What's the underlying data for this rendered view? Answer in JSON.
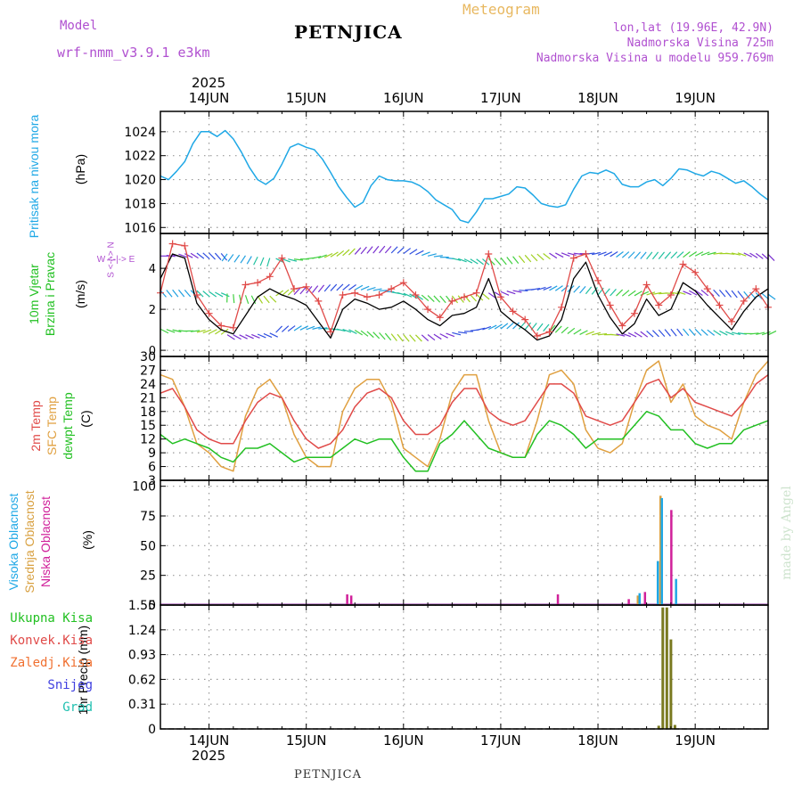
{
  "header": {
    "model_label": "Model",
    "model_name": "wrf-nmm_v3.9.1 e3km",
    "meteogram_label": "Meteogram",
    "station": "PETNJICA",
    "lonlat": "lon,lat (19.96E, 42.9N)",
    "altitude": "Nadmorska Visina 725m",
    "model_altitude": "Nadmorska Visina u modelu 959.769m",
    "year_top": "2025",
    "year_bottom": "2025",
    "footer_station": "PETNJICA",
    "watermark": "made by Angel"
  },
  "colors": {
    "pressure": "#1fa8e6",
    "t2m": "#e04a48",
    "sfc": "#e0a040",
    "dewpt": "#22c022",
    "wind_speed": "#000000",
    "gust": "#e04a48",
    "high_cloud": "#1fa8e6",
    "mid_cloud": "#d8a040",
    "low_cloud": "#d0209a",
    "precip": "#7a7a20"
  },
  "chart_data": {
    "type": "meteogram",
    "x_days": [
      "14JUN",
      "15JUN",
      "16JUN",
      "17JUN",
      "18JUN",
      "19JUN"
    ],
    "x_unit": "hours since 13JUN 12UTC, day ticks at 12,36,60,84,108,132",
    "x_range": [
      0,
      150
    ],
    "panels": [
      {
        "id": "pressure",
        "type": "line",
        "ylabel_side": "Pritisak na nivou mora",
        "unit": "(hPa)",
        "yticks": [
          "1024",
          "1022",
          "1020",
          "1018",
          "1016"
        ],
        "ylim": [
          1015.5,
          1025.7
        ],
        "x": [
          0,
          2,
          4,
          6,
          8,
          10,
          12,
          14,
          16,
          18,
          20,
          22,
          24,
          26,
          28,
          30,
          32,
          34,
          36,
          38,
          40,
          42,
          44,
          46,
          48,
          50,
          52,
          54,
          56,
          58,
          60,
          62,
          64,
          66,
          68,
          70,
          72,
          74,
          76,
          78,
          80,
          82,
          84,
          86,
          88,
          90,
          92,
          94,
          96,
          98,
          100,
          102,
          104,
          106,
          108,
          110,
          112,
          114,
          116,
          118,
          120,
          122,
          124,
          126,
          128,
          130,
          132,
          134,
          136,
          138,
          140,
          142,
          144,
          146,
          148,
          150
        ],
        "values": [
          1020.3,
          1020.0,
          1020.7,
          1021.5,
          1023.0,
          1024.0,
          1024.0,
          1023.6,
          1024.1,
          1023.4,
          1022.3,
          1021.0,
          1020.0,
          1019.6,
          1020.1,
          1021.3,
          1022.7,
          1023.0,
          1022.7,
          1022.5,
          1021.7,
          1020.6,
          1019.4,
          1018.5,
          1017.7,
          1018.1,
          1019.5,
          1020.3,
          1020.0,
          1019.9,
          1019.9,
          1019.8,
          1019.5,
          1019.0,
          1018.3,
          1017.9,
          1017.5,
          1016.6,
          1016.4,
          1017.3,
          1018.4,
          1018.4,
          1018.6,
          1018.8,
          1019.4,
          1019.3,
          1018.7,
          1018.0,
          1017.8,
          1017.7,
          1017.9,
          1019.2,
          1020.3,
          1020.6,
          1020.5,
          1020.8,
          1020.5,
          1019.6,
          1019.4,
          1019.4,
          1019.8,
          1020.0,
          1019.5,
          1020.1,
          1020.9,
          1020.8,
          1020.5,
          1020.3,
          1020.7,
          1020.5,
          1020.1,
          1019.7,
          1019.9,
          1019.4,
          1018.8,
          1018.3
        ]
      },
      {
        "id": "wind",
        "type": "line",
        "ylabel_side": [
          "10m Vjetar",
          "Brzina i Pravac"
        ],
        "unit": "(m/s)",
        "compass": "W <-|-> E",
        "compass_vert": "S <-|-> N",
        "yticks": [
          "4",
          "2",
          "0"
        ],
        "ylim": [
          -0.3,
          5.7
        ],
        "x": [
          0,
          3,
          6,
          9,
          12,
          15,
          18,
          21,
          24,
          27,
          30,
          33,
          36,
          39,
          42,
          45,
          48,
          51,
          54,
          57,
          60,
          63,
          66,
          69,
          72,
          75,
          78,
          81,
          84,
          87,
          90,
          93,
          96,
          99,
          102,
          105,
          108,
          111,
          114,
          117,
          120,
          123,
          126,
          129,
          132,
          135,
          138,
          141,
          144,
          147,
          150
        ],
        "speed": [
          3.5,
          4.7,
          4.5,
          2.3,
          1.5,
          1.0,
          0.8,
          1.7,
          2.6,
          3.0,
          2.7,
          2.5,
          2.2,
          1.4,
          0.6,
          2.0,
          2.5,
          2.3,
          2.0,
          2.1,
          2.4,
          2.0,
          1.5,
          1.2,
          1.7,
          1.8,
          2.1,
          3.5,
          1.9,
          1.4,
          1.0,
          0.5,
          0.7,
          1.5,
          3.5,
          4.3,
          2.7,
          1.6,
          0.8,
          1.3,
          2.5,
          1.7,
          2.0,
          3.3,
          2.9,
          2.2,
          1.6,
          1.0,
          1.9,
          2.6,
          3.0
        ],
        "gust": [
          2.8,
          5.2,
          5.1,
          2.7,
          1.8,
          1.2,
          1.1,
          3.2,
          3.3,
          3.6,
          4.5,
          3.0,
          3.1,
          2.4,
          0.9,
          2.7,
          2.8,
          2.6,
          2.7,
          3.0,
          3.3,
          2.7,
          2.0,
          1.6,
          2.4,
          2.6,
          2.8,
          4.7,
          2.6,
          1.9,
          1.5,
          0.7,
          0.9,
          2.1,
          4.5,
          4.7,
          3.4,
          2.2,
          1.2,
          1.8,
          3.2,
          2.2,
          2.7,
          4.2,
          3.8,
          3.0,
          2.2,
          1.4,
          2.4,
          3.0,
          2.1
        ]
      },
      {
        "id": "temperature",
        "type": "line",
        "ylabel_side": [
          "2m Temp",
          "SFC Temp",
          "dewpt Temp"
        ],
        "unit": "(C)",
        "yticks": [
          "30",
          "27",
          "24",
          "21",
          "18",
          "15",
          "12",
          "9",
          "6",
          "3"
        ],
        "ylim": [
          3,
          30
        ],
        "x": [
          0,
          3,
          6,
          9,
          12,
          15,
          18,
          21,
          24,
          27,
          30,
          33,
          36,
          39,
          42,
          45,
          48,
          51,
          54,
          57,
          60,
          63,
          66,
          69,
          72,
          75,
          78,
          81,
          84,
          87,
          90,
          93,
          96,
          99,
          102,
          105,
          108,
          111,
          114,
          117,
          120,
          123,
          126,
          129,
          132,
          135,
          138,
          141,
          144,
          147,
          150
        ],
        "t2m": [
          22,
          23,
          19,
          14,
          12,
          11,
          11,
          16,
          20,
          22,
          21,
          16,
          12,
          10,
          11,
          14,
          19,
          22,
          23,
          21,
          16,
          13,
          13,
          15,
          20,
          23,
          23,
          18,
          16,
          15,
          16,
          20,
          24,
          24,
          22,
          17,
          16,
          15,
          16,
          20,
          24,
          25,
          21,
          23,
          20,
          19,
          18,
          17,
          20,
          24,
          26
        ],
        "sfc": [
          26,
          25,
          19,
          11,
          9,
          6,
          5,
          17,
          23,
          25,
          21,
          13,
          8,
          6,
          6,
          18,
          23,
          25,
          25,
          20,
          10,
          8,
          6,
          12,
          22,
          26,
          26,
          16,
          9,
          8,
          8,
          16,
          26,
          27,
          24,
          14,
          10,
          9,
          11,
          20,
          27,
          29,
          20,
          24,
          17,
          15,
          14,
          12,
          20,
          26,
          29
        ],
        "dewpt": [
          13,
          11,
          12,
          11,
          10,
          8,
          7,
          10,
          10,
          11,
          9,
          7,
          8,
          8,
          8,
          10,
          12,
          11,
          12,
          12,
          8,
          5,
          5,
          11,
          13,
          16,
          13,
          10,
          9,
          8,
          8,
          13,
          16,
          15,
          13,
          10,
          12,
          12,
          12,
          15,
          18,
          17,
          14,
          14,
          11,
          10,
          11,
          11,
          14,
          15,
          16
        ]
      },
      {
        "id": "cloud",
        "type": "bar",
        "ylabel_side": [
          "Visoka Oblacnost",
          "Srednja Oblacnost",
          "Niska Oblacnost"
        ],
        "unit": "(%)",
        "yticks": [
          "100",
          "75",
          "50",
          "25",
          "0"
        ],
        "ylim": [
          0,
          105
        ],
        "high": [
          {
            "x": 118,
            "v": 10
          },
          {
            "x": 122.5,
            "v": 37
          },
          {
            "x": 123.5,
            "v": 90
          },
          {
            "x": 127,
            "v": 22
          }
        ],
        "mid": [
          {
            "x": 118,
            "v": 8
          },
          {
            "x": 123,
            "v": 37
          },
          {
            "x": 123.6,
            "v": 92
          }
        ],
        "low": [
          {
            "x": 45.5,
            "v": 9
          },
          {
            "x": 46.5,
            "v": 8
          },
          {
            "x": 97.5,
            "v": 9
          },
          {
            "x": 115,
            "v": 5
          },
          {
            "x": 119,
            "v": 11
          },
          {
            "x": 125.5,
            "v": 80
          }
        ]
      },
      {
        "id": "precip",
        "type": "bar",
        "ylabel_side": "1hr Precip (mm)",
        "legend": [
          "Ukupna Kisa",
          "Konvek.Kisa",
          "Zaledj.Kisa",
          "Snijeg",
          "Grad"
        ],
        "yticks": [
          "1.55",
          "1.24",
          "0.93",
          "0.62",
          "0.31",
          "0"
        ],
        "ylim": [
          0,
          1.55
        ],
        "total": [
          {
            "x": 123,
            "v": 0.04
          },
          {
            "x": 124,
            "v": 1.52
          },
          {
            "x": 125,
            "v": 1.52
          },
          {
            "x": 126,
            "v": 1.12
          },
          {
            "x": 127,
            "v": 0.05
          }
        ]
      }
    ]
  }
}
